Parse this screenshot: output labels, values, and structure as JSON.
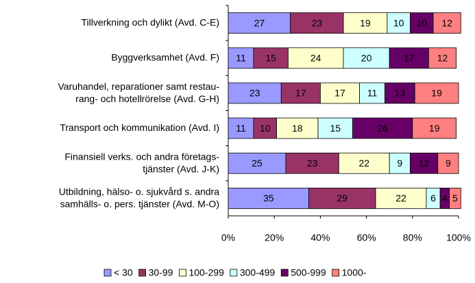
{
  "chart_data": {
    "type": "bar",
    "orientation": "horizontal",
    "stacked": true,
    "categories": [
      "Tillverkning och dylikt (Avd. C-E)",
      "Byggverksamhet (Avd. F)",
      "Varuhandel, reparationer samt restau-\nrang- och hotellrörelse (Avd. G-H)",
      "Transport och kommunikation (Avd. I)",
      "Finansiell verks. och andra företags-\ntjänster (Avd. J-K)",
      "Utbildning, hälso- o. sjukvård s. andra\nsamhälls- o. pers. tjänster (Avd. M-O)"
    ],
    "series": [
      {
        "name": "< 30",
        "color": "#9999ff",
        "values": [
          27,
          11,
          23,
          11,
          25,
          35
        ]
      },
      {
        "name": "30-99",
        "color": "#993366",
        "values": [
          23,
          15,
          17,
          10,
          23,
          29
        ]
      },
      {
        "name": "100-299",
        "color": "#ffffcc",
        "values": [
          19,
          24,
          17,
          18,
          22,
          22
        ]
      },
      {
        "name": "300-499",
        "color": "#ccffff",
        "values": [
          10,
          20,
          11,
          15,
          9,
          6
        ]
      },
      {
        "name": "500-999",
        "color": "#660066",
        "values": [
          10,
          17,
          13,
          26,
          12,
          4
        ]
      },
      {
        "name": "1000-",
        "color": "#ff8080",
        "values": [
          12,
          12,
          19,
          19,
          9,
          5
        ]
      }
    ],
    "xlim": [
      0,
      100
    ],
    "xticks": [
      {
        "value": 0,
        "label": "0%"
      },
      {
        "value": 20,
        "label": "20%"
      },
      {
        "value": 40,
        "label": "40%"
      },
      {
        "value": 60,
        "label": "60%"
      },
      {
        "value": 80,
        "label": "80%"
      },
      {
        "value": 100,
        "label": "100%"
      }
    ],
    "legend": "bottom"
  }
}
